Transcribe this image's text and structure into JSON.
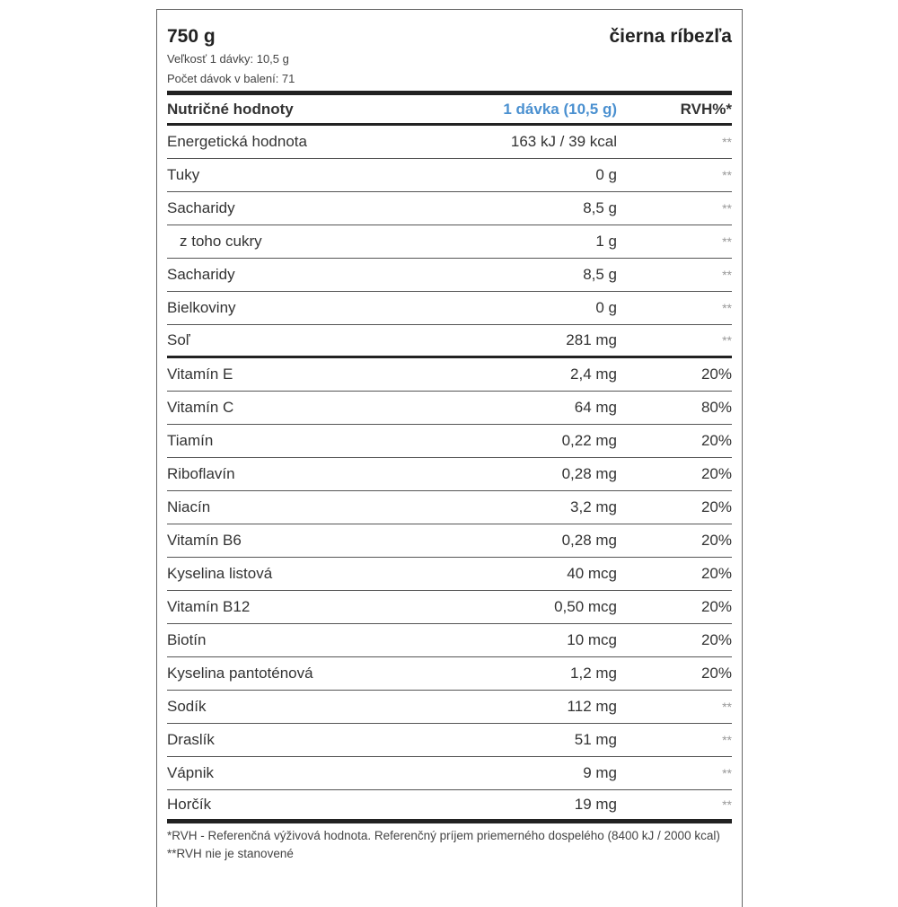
{
  "header": {
    "weight": "750 g",
    "flavor": "čierna ríbezľa",
    "serving_size": "Veľkosť 1 dávky: 10,5 g",
    "servings": "Počet dávok v balení: 71"
  },
  "table": {
    "columns": [
      "Nutričné hodnoty",
      "1 dávka (10,5 g)",
      "RVH%*"
    ],
    "rows": [
      {
        "name": "Energetická hodnota",
        "value": "163 kJ / 39 kcal",
        "rvh": "**"
      },
      {
        "name": "Tuky",
        "value": "0 g",
        "rvh": "**"
      },
      {
        "name": "Sacharidy",
        "value": "8,5 g",
        "rvh": "**"
      },
      {
        "name": "z toho cukry",
        "value": "1 g",
        "rvh": "**",
        "indent": true
      },
      {
        "name": "Sacharidy",
        "value": "8,5 g",
        "rvh": "**"
      },
      {
        "name": "Bielkoviny",
        "value": "0 g",
        "rvh": "**"
      },
      {
        "name": "Soľ",
        "value": "281 mg",
        "rvh": "**",
        "thick": true
      },
      {
        "name": "Vitamín E",
        "value": "2,4 mg",
        "rvh": "20%"
      },
      {
        "name": "Vitamín C",
        "value": "64 mg",
        "rvh": "80%"
      },
      {
        "name": "Tiamín",
        "value": "0,22 mg",
        "rvh": "20%"
      },
      {
        "name": "Riboflavín",
        "value": "0,28 mg",
        "rvh": "20%"
      },
      {
        "name": "Niacín",
        "value": "3,2 mg",
        "rvh": "20%"
      },
      {
        "name": "Vitamín B6",
        "value": "0,28 mg",
        "rvh": "20%"
      },
      {
        "name": "Kyselina listová",
        "value": "40 mcg",
        "rvh": "20%"
      },
      {
        "name": "Vitamín B12",
        "value": "0,50 mcg",
        "rvh": "20%"
      },
      {
        "name": "Biotín",
        "value": "10 mcg",
        "rvh": "20%"
      },
      {
        "name": "Kyselina pantoténová",
        "value": "1,2 mg",
        "rvh": "20%"
      },
      {
        "name": "Sodík",
        "value": "112 mg",
        "rvh": "**"
      },
      {
        "name": "Draslík",
        "value": "51 mg",
        "rvh": "**"
      },
      {
        "name": "Vápnik",
        "value": "9 mg",
        "rvh": "**"
      },
      {
        "name": "Horčík",
        "value": "19 mg",
        "rvh": "**"
      }
    ]
  },
  "footnotes": [
    "*RVH - Referenčná výživová hodnota. Referenčný príjem priemerného dospelého (8400 kJ / 2000 kcal)",
    "**RVH nie je stanovené"
  ],
  "colors": {
    "accent": "#4a90d0"
  }
}
